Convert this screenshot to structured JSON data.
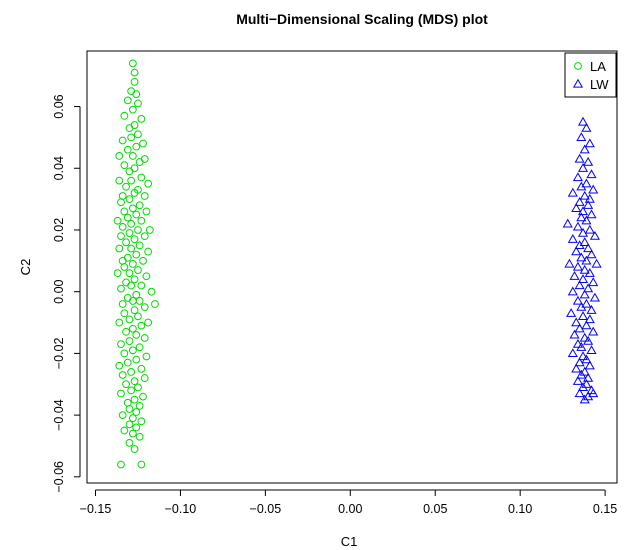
{
  "chart_data": {
    "type": "scatter",
    "title": "Multi−Dimensional Scaling (MDS) plot",
    "xlabel": "C1",
    "ylabel": "C2",
    "xlim": [
      -0.155,
      0.157
    ],
    "ylim": [
      -0.062,
      0.078
    ],
    "xticks": [
      -0.15,
      -0.1,
      -0.05,
      0.0,
      0.05,
      0.1,
      0.15
    ],
    "xtick_labels": [
      "−0.15",
      "−0.10",
      "−0.05",
      "0.00",
      "0.05",
      "0.10",
      "0.15"
    ],
    "yticks": [
      -0.06,
      -0.04,
      -0.02,
      0.0,
      0.02,
      0.04,
      0.06
    ],
    "ytick_labels": [
      "−0.06",
      "−0.04",
      "−0.02",
      "0.00",
      "0.02",
      "0.04",
      "0.06"
    ],
    "legend_position": "top-right",
    "series": [
      {
        "name": "LA",
        "color": "#00dd00",
        "marker": "circle",
        "points": [
          [
            -0.128,
            0.074
          ],
          [
            -0.127,
            0.071
          ],
          [
            -0.127,
            0.068
          ],
          [
            -0.129,
            0.065
          ],
          [
            -0.126,
            0.064
          ],
          [
            -0.131,
            0.062
          ],
          [
            -0.125,
            0.061
          ],
          [
            -0.128,
            0.059
          ],
          [
            -0.133,
            0.057
          ],
          [
            -0.123,
            0.056
          ],
          [
            -0.127,
            0.054
          ],
          [
            -0.13,
            0.053
          ],
          [
            -0.125,
            0.051
          ],
          [
            -0.129,
            0.05
          ],
          [
            -0.134,
            0.049
          ],
          [
            -0.122,
            0.048
          ],
          [
            -0.126,
            0.047
          ],
          [
            -0.131,
            0.046
          ],
          [
            -0.136,
            0.044
          ],
          [
            -0.128,
            0.044
          ],
          [
            -0.121,
            0.043
          ],
          [
            -0.124,
            0.042
          ],
          [
            -0.133,
            0.041
          ],
          [
            -0.127,
            0.04
          ],
          [
            -0.13,
            0.039
          ],
          [
            -0.136,
            0.036
          ],
          [
            -0.119,
            0.035
          ],
          [
            -0.123,
            0.037
          ],
          [
            -0.129,
            0.036
          ],
          [
            -0.132,
            0.034
          ],
          [
            -0.125,
            0.033
          ],
          [
            -0.127,
            0.032
          ],
          [
            -0.134,
            0.031
          ],
          [
            -0.121,
            0.031
          ],
          [
            -0.13,
            0.03
          ],
          [
            -0.135,
            0.029
          ],
          [
            -0.124,
            0.028
          ],
          [
            -0.128,
            0.027
          ],
          [
            -0.133,
            0.026
          ],
          [
            -0.12,
            0.026
          ],
          [
            -0.126,
            0.025
          ],
          [
            -0.131,
            0.024
          ],
          [
            -0.137,
            0.023
          ],
          [
            -0.123,
            0.023
          ],
          [
            -0.129,
            0.022
          ],
          [
            -0.134,
            0.021
          ],
          [
            -0.118,
            0.02
          ],
          [
            -0.125,
            0.02
          ],
          [
            -0.13,
            0.019
          ],
          [
            -0.135,
            0.018
          ],
          [
            -0.121,
            0.018
          ],
          [
            -0.127,
            0.017
          ],
          [
            -0.132,
            0.016
          ],
          [
            -0.124,
            0.015
          ],
          [
            -0.129,
            0.014
          ],
          [
            -0.136,
            0.014
          ],
          [
            -0.119,
            0.013
          ],
          [
            -0.126,
            0.012
          ],
          [
            -0.131,
            0.011
          ],
          [
            -0.134,
            0.01
          ],
          [
            -0.122,
            0.01
          ],
          [
            -0.128,
            0.009
          ],
          [
            -0.133,
            0.008
          ],
          [
            -0.125,
            0.007
          ],
          [
            -0.13,
            0.006
          ],
          [
            -0.137,
            0.006
          ],
          [
            -0.12,
            0.005
          ],
          [
            -0.127,
            0.004
          ],
          [
            -0.132,
            0.003
          ],
          [
            -0.123,
            0.002
          ],
          [
            -0.129,
            0.002
          ],
          [
            -0.135,
            0.001
          ],
          [
            -0.117,
            0.0
          ],
          [
            -0.126,
            -0.001
          ],
          [
            -0.131,
            -0.002
          ],
          [
            -0.124,
            -0.003
          ],
          [
            -0.128,
            -0.003
          ],
          [
            -0.134,
            -0.004
          ],
          [
            -0.115,
            -0.004
          ],
          [
            -0.121,
            -0.005
          ],
          [
            -0.127,
            -0.006
          ],
          [
            -0.133,
            -0.007
          ],
          [
            -0.125,
            -0.008
          ],
          [
            -0.13,
            -0.009
          ],
          [
            -0.136,
            -0.01
          ],
          [
            -0.119,
            -0.01
          ],
          [
            -0.123,
            -0.011
          ],
          [
            -0.128,
            -0.012
          ],
          [
            -0.132,
            -0.013
          ],
          [
            -0.126,
            -0.014
          ],
          [
            -0.121,
            -0.015
          ],
          [
            -0.13,
            -0.016
          ],
          [
            -0.135,
            -0.017
          ],
          [
            -0.124,
            -0.018
          ],
          [
            -0.128,
            -0.019
          ],
          [
            -0.133,
            -0.02
          ],
          [
            -0.12,
            -0.021
          ],
          [
            -0.126,
            -0.022
          ],
          [
            -0.131,
            -0.023
          ],
          [
            -0.136,
            -0.024
          ],
          [
            -0.123,
            -0.025
          ],
          [
            -0.129,
            -0.026
          ],
          [
            -0.134,
            -0.027
          ],
          [
            -0.121,
            -0.028
          ],
          [
            -0.127,
            -0.029
          ],
          [
            -0.132,
            -0.03
          ],
          [
            -0.125,
            -0.031
          ],
          [
            -0.129,
            -0.032
          ],
          [
            -0.135,
            -0.033
          ],
          [
            -0.122,
            -0.034
          ],
          [
            -0.127,
            -0.035
          ],
          [
            -0.131,
            -0.036
          ],
          [
            -0.124,
            -0.037
          ],
          [
            -0.13,
            -0.038
          ],
          [
            -0.126,
            -0.039
          ],
          [
            -0.134,
            -0.04
          ],
          [
            -0.128,
            -0.041
          ],
          [
            -0.123,
            -0.042
          ],
          [
            -0.13,
            -0.043
          ],
          [
            -0.126,
            -0.044
          ],
          [
            -0.133,
            -0.045
          ],
          [
            -0.128,
            -0.046
          ],
          [
            -0.124,
            -0.047
          ],
          [
            -0.13,
            -0.049
          ],
          [
            -0.127,
            -0.051
          ],
          [
            -0.135,
            -0.056
          ],
          [
            -0.123,
            -0.056
          ]
        ]
      },
      {
        "name": "LW",
        "color": "#0000ff",
        "marker": "triangle",
        "points": [
          [
            0.137,
            0.055
          ],
          [
            0.139,
            0.053
          ],
          [
            0.136,
            0.05
          ],
          [
            0.141,
            0.048
          ],
          [
            0.138,
            0.046
          ],
          [
            0.135,
            0.043
          ],
          [
            0.14,
            0.042
          ],
          [
            0.137,
            0.04
          ],
          [
            0.142,
            0.038
          ],
          [
            0.134,
            0.037
          ],
          [
            0.139,
            0.035
          ],
          [
            0.136,
            0.034
          ],
          [
            0.143,
            0.033
          ],
          [
            0.131,
            0.032
          ],
          [
            0.138,
            0.031
          ],
          [
            0.141,
            0.03
          ],
          [
            0.135,
            0.029
          ],
          [
            0.14,
            0.028
          ],
          [
            0.133,
            0.027
          ],
          [
            0.137,
            0.026
          ],
          [
            0.142,
            0.025
          ],
          [
            0.136,
            0.024
          ],
          [
            0.139,
            0.023
          ],
          [
            0.128,
            0.022
          ],
          [
            0.134,
            0.021
          ],
          [
            0.141,
            0.02
          ],
          [
            0.137,
            0.019
          ],
          [
            0.144,
            0.018
          ],
          [
            0.131,
            0.017
          ],
          [
            0.138,
            0.016
          ],
          [
            0.135,
            0.015
          ],
          [
            0.14,
            0.014
          ],
          [
            0.133,
            0.013
          ],
          [
            0.142,
            0.012
          ],
          [
            0.136,
            0.011
          ],
          [
            0.139,
            0.01
          ],
          [
            0.129,
            0.009
          ],
          [
            0.145,
            0.009
          ],
          [
            0.134,
            0.008
          ],
          [
            0.138,
            0.007
          ],
          [
            0.141,
            0.006
          ],
          [
            0.132,
            0.005
          ],
          [
            0.137,
            0.004
          ],
          [
            0.143,
            0.003
          ],
          [
            0.135,
            0.002
          ],
          [
            0.14,
            0.001
          ],
          [
            0.131,
            0.0
          ],
          [
            0.138,
            -0.001
          ],
          [
            0.144,
            -0.002
          ],
          [
            0.134,
            -0.003
          ],
          [
            0.139,
            -0.004
          ],
          [
            0.136,
            -0.005
          ],
          [
            0.142,
            -0.006
          ],
          [
            0.13,
            -0.007
          ],
          [
            0.137,
            -0.008
          ],
          [
            0.141,
            -0.009
          ],
          [
            0.133,
            -0.01
          ],
          [
            0.139,
            -0.011
          ],
          [
            0.135,
            -0.012
          ],
          [
            0.143,
            -0.013
          ],
          [
            0.132,
            -0.014
          ],
          [
            0.138,
            -0.015
          ],
          [
            0.14,
            -0.016
          ],
          [
            0.134,
            -0.017
          ],
          [
            0.136,
            -0.018
          ],
          [
            0.142,
            -0.019
          ],
          [
            0.131,
            -0.02
          ],
          [
            0.137,
            -0.021
          ],
          [
            0.139,
            -0.022
          ],
          [
            0.135,
            -0.023
          ],
          [
            0.141,
            -0.024
          ],
          [
            0.133,
            -0.025
          ],
          [
            0.138,
            -0.026
          ],
          [
            0.136,
            -0.027
          ],
          [
            0.14,
            -0.028
          ],
          [
            0.134,
            -0.029
          ],
          [
            0.139,
            -0.03
          ],
          [
            0.137,
            -0.031
          ],
          [
            0.142,
            -0.032
          ],
          [
            0.135,
            -0.033
          ],
          [
            0.14,
            -0.034
          ],
          [
            0.138,
            -0.035
          ],
          [
            0.143,
            -0.033
          ]
        ]
      }
    ]
  }
}
